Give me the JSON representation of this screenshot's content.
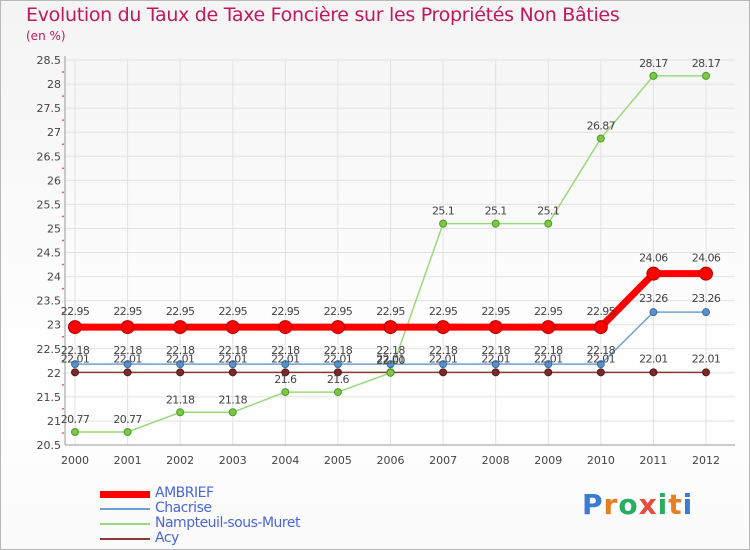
{
  "title": "Evolution du Taux de Taxe Foncière sur les Propriétés Non Bâties",
  "unit": "(en %)",
  "logo": {
    "letters": [
      "P",
      "r",
      "o",
      "x",
      "i",
      "t",
      "i"
    ],
    "colors": [
      "#3a7bd5",
      "#e67e22",
      "#27ae60",
      "#e74c3c",
      "#27ae60",
      "#e67e22",
      "#3a7bd5"
    ]
  },
  "chart_data": {
    "type": "line",
    "title": "Evolution du Taux de Taxe Foncière sur les Propriétés Non Bâties",
    "ylabel": "(en %)",
    "xlabel": "",
    "x": [
      "2000",
      "2001",
      "2002",
      "2003",
      "2004",
      "2005",
      "2006",
      "2007",
      "2008",
      "2009",
      "2010",
      "2011",
      "2012"
    ],
    "ylim": [
      20.5,
      28.5
    ],
    "yticks": [
      "20.5",
      "21",
      "21.5",
      "22",
      "22.5",
      "23",
      "23.5",
      "24",
      "24.5",
      "25",
      "25.5",
      "26",
      "26.5",
      "27",
      "27.5",
      "28",
      "28.5"
    ],
    "legend_position": "bottom-left",
    "series": [
      {
        "name": "AMBRIEF",
        "color": "#ff0000",
        "values": [
          22.95,
          22.95,
          22.95,
          22.95,
          22.95,
          22.95,
          22.95,
          22.95,
          22.95,
          22.95,
          22.95,
          24.06,
          24.06
        ],
        "labels": [
          "22.95",
          "22.95",
          "22.95",
          "22.95",
          "22.95",
          "22.95",
          "22.95",
          "22.95",
          "22.95",
          "22.95",
          "22.95",
          "24.06",
          "24.06"
        ]
      },
      {
        "name": "Chacrise",
        "color": "#6fa0d0",
        "values": [
          22.18,
          22.18,
          22.18,
          22.18,
          22.18,
          22.18,
          22.18,
          22.18,
          22.18,
          22.18,
          22.18,
          23.26,
          23.26
        ],
        "labels": [
          "22.18",
          "22.18",
          "22.18",
          "22.18",
          "22.18",
          "22.18",
          "22.18",
          "22.18",
          "22.18",
          "22.18",
          "22.18",
          "23.26",
          "23.26"
        ]
      },
      {
        "name": "Nampteuil-sous-Muret",
        "color": "#9ad97a",
        "values": [
          20.77,
          20.77,
          21.18,
          21.18,
          21.6,
          21.6,
          22.0,
          25.1,
          25.1,
          25.1,
          26.87,
          28.17,
          28.17
        ],
        "labels": [
          "20.77",
          "20.77",
          "21.18",
          "21.18",
          "21.6",
          "21.6",
          "22.00",
          "25.1",
          "25.1",
          "25.1",
          "26.87",
          "28.17",
          "28.17"
        ]
      },
      {
        "name": "Acy",
        "color": "#8b3a3a",
        "values": [
          22.01,
          22.01,
          22.01,
          22.01,
          22.01,
          22.01,
          22.01,
          22.01,
          22.01,
          22.01,
          22.01,
          22.01,
          22.01
        ],
        "labels": [
          "22.01",
          "22.01",
          "22.01",
          "22.01",
          "22.01",
          "22.01",
          "22.01",
          "22.01",
          "22.01",
          "22.01",
          "22.01",
          "22.01",
          "22.01"
        ]
      }
    ]
  }
}
